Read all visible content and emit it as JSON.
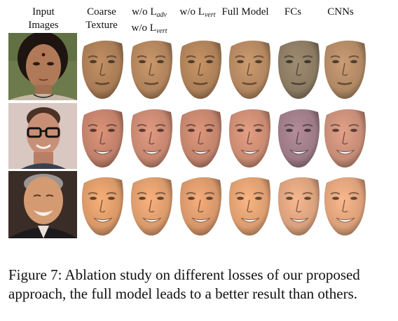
{
  "figure": {
    "columns": [
      {
        "line1": "Input",
        "line2": "Images"
      },
      {
        "line1": "Coarse",
        "line2": "Texture"
      },
      {
        "line1": "w/o L",
        "line1_sub": "adv",
        "line2": "w/o L",
        "line2_sub": "vert"
      },
      {
        "line1": "w/o L",
        "line1_sub": "vert"
      },
      {
        "line1": "Full Model"
      },
      {
        "line1": "FCs"
      },
      {
        "line1": "CNNs"
      }
    ],
    "rows": [
      {
        "subject": "woman-with-bindi",
        "photo_bg": "#6d7a4c",
        "photo_skin": "#b07a58",
        "photo_hair": "#1e1410",
        "faces": [
          {
            "method": "coarse-texture",
            "tone": "#a97c56"
          },
          {
            "method": "wo-adv-wo-vert",
            "tone": "#b0835c"
          },
          {
            "method": "wo-vert",
            "tone": "#ad8058"
          },
          {
            "method": "full-model",
            "tone": "#b28660"
          },
          {
            "method": "fcs",
            "tone": "#8a7a62"
          },
          {
            "method": "cnns",
            "tone": "#b08864"
          }
        ]
      },
      {
        "subject": "man-with-glasses",
        "photo_bg": "#d9c7c2",
        "photo_skin": "#c98f76",
        "photo_hair": "#4a3224",
        "faces": [
          {
            "method": "coarse-texture",
            "tone": "#c0806a"
          },
          {
            "method": "wo-adv-wo-vert",
            "tone": "#c58670"
          },
          {
            "method": "wo-vert",
            "tone": "#c2836c"
          },
          {
            "method": "full-model",
            "tone": "#c88a72"
          },
          {
            "method": "fcs",
            "tone": "#9c7a86"
          },
          {
            "method": "cnns",
            "tone": "#c58c76"
          }
        ]
      },
      {
        "subject": "older-man-smiling",
        "photo_bg": "#3a2c26",
        "photo_skin": "#d49a72",
        "photo_hair": "#9a9592",
        "faces": [
          {
            "method": "coarse-texture",
            "tone": "#d89868"
          },
          {
            "method": "wo-adv-wo-vert",
            "tone": "#d99a6c"
          },
          {
            "method": "wo-vert",
            "tone": "#d6966a"
          },
          {
            "method": "full-model",
            "tone": "#db9d70"
          },
          {
            "method": "fcs",
            "tone": "#d8a07c"
          },
          {
            "method": "cnns",
            "tone": "#dba07a"
          }
        ]
      }
    ]
  },
  "caption": "Figure 7: Ablation study on different losses of our proposed approach, the full model leads to a better result than others."
}
